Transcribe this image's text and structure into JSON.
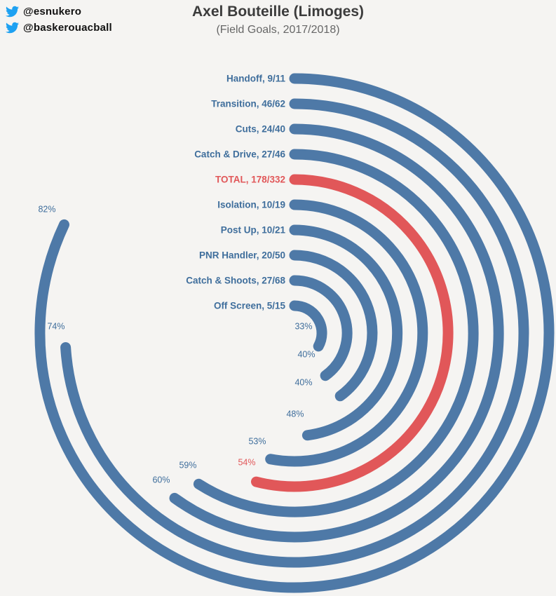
{
  "header": {
    "twitter_handles": [
      {
        "label": "@esnukero"
      },
      {
        "label": "@baskerouacball"
      }
    ],
    "title": "Axel Bouteille (Limoges)",
    "subtitle": "(Field Goals, 2017/2018)"
  },
  "colors": {
    "background": "#f5f4f2",
    "twitter": "#1da1f2",
    "bar": "#4e79a7",
    "bar_label": "#3f6e9c",
    "highlight": "#e15759"
  },
  "chart_data": {
    "type": "radial_bar",
    "title": "Axel Bouteille (Limoges)",
    "subtitle": "(Field Goals, 2017/2018)",
    "value_meaning": "field goal percentage, arc sweep = pct of full circle starting at 12 o'clock clockwise",
    "order": "outermost to innermost",
    "categories": [
      {
        "name": "Handoff",
        "made": 9,
        "attempts": 11,
        "pct": 82,
        "highlight": false
      },
      {
        "name": "Transition",
        "made": 46,
        "attempts": 62,
        "pct": 74,
        "highlight": false
      },
      {
        "name": "Cuts",
        "made": 24,
        "attempts": 40,
        "pct": 60,
        "highlight": false
      },
      {
        "name": "Catch & Drive",
        "made": 27,
        "attempts": 46,
        "pct": 59,
        "highlight": false
      },
      {
        "name": "TOTAL",
        "made": 178,
        "attempts": 332,
        "pct": 54,
        "highlight": true
      },
      {
        "name": "Isolation",
        "made": 10,
        "attempts": 19,
        "pct": 53,
        "highlight": false
      },
      {
        "name": "Post Up",
        "made": 10,
        "attempts": 21,
        "pct": 48,
        "highlight": false
      },
      {
        "name": "PNR Handler",
        "made": 20,
        "attempts": 50,
        "pct": 40,
        "highlight": false
      },
      {
        "name": "Catch & Shoots",
        "made": 27,
        "attempts": 68,
        "pct": 40,
        "highlight": false
      },
      {
        "name": "Off Screen",
        "made": 5,
        "attempts": 15,
        "pct": 33,
        "highlight": false
      }
    ]
  }
}
